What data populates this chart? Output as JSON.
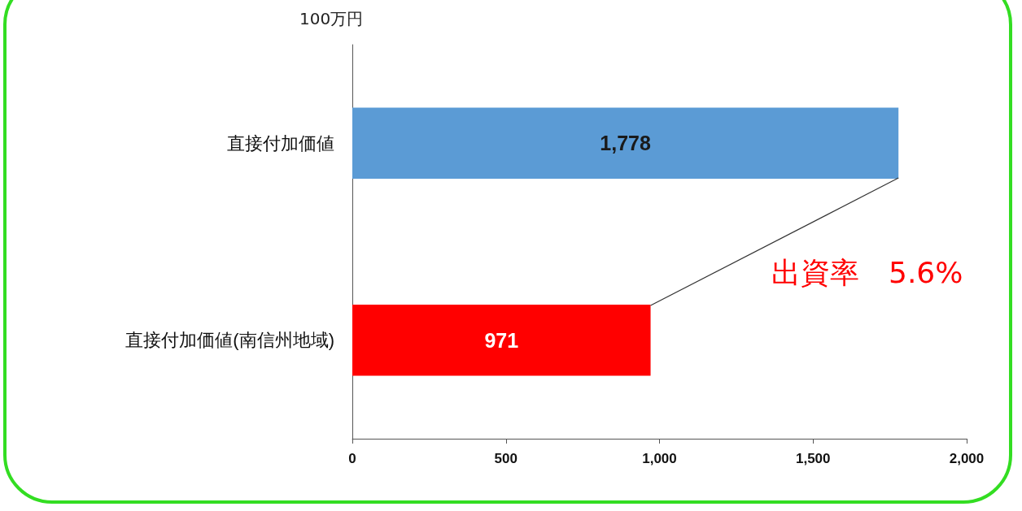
{
  "chart_data": {
    "type": "bar",
    "orientation": "horizontal",
    "xlabel": "100万円",
    "categories": [
      "直接付加価値",
      "直接付加価値(南信州地域)"
    ],
    "values": [
      1778,
      971
    ],
    "colors": [
      "#5b9bd5",
      "#ff0000"
    ],
    "value_labels": [
      "1,778",
      "971"
    ],
    "xlim": [
      0,
      2000
    ],
    "xticks": [
      0,
      500,
      {
        "value": 1000,
        "label": "1,000"
      },
      {
        "value": 1500,
        "label": "1,500"
      },
      {
        "value": 2000,
        "label": "2,000"
      }
    ],
    "annotations": [
      "出資率　5.6%"
    ],
    "grid": false
  }
}
